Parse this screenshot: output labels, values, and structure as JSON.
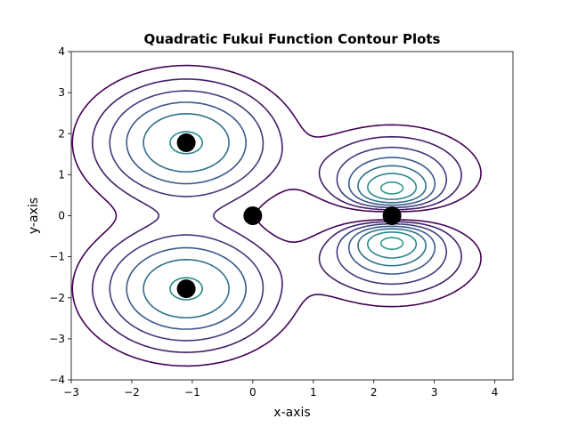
{
  "chart_data": {
    "type": "contour",
    "title": "Quadratic Fukui Function Contour Plots",
    "xlabel": "x-axis",
    "ylabel": "y-axis",
    "xlim": [
      -3,
      4.3
    ],
    "ylim": [
      -4,
      4
    ],
    "xticks": [
      -3,
      -2,
      -1,
      0,
      1,
      2,
      3,
      4
    ],
    "yticks": [
      -4,
      -3,
      -2,
      -1,
      0,
      1,
      2,
      3,
      4
    ],
    "grid": false,
    "colormap": [
      "#440154",
      "#3b528b",
      "#21918c",
      "#5ec962",
      "#fde725"
    ],
    "atoms": [
      {
        "x": -1.1,
        "y": 1.78
      },
      {
        "x": -1.1,
        "y": -1.78
      },
      {
        "x": 0.0,
        "y": 0.0
      },
      {
        "x": 2.3,
        "y": 0.0
      }
    ],
    "marker_color": "#000000"
  }
}
